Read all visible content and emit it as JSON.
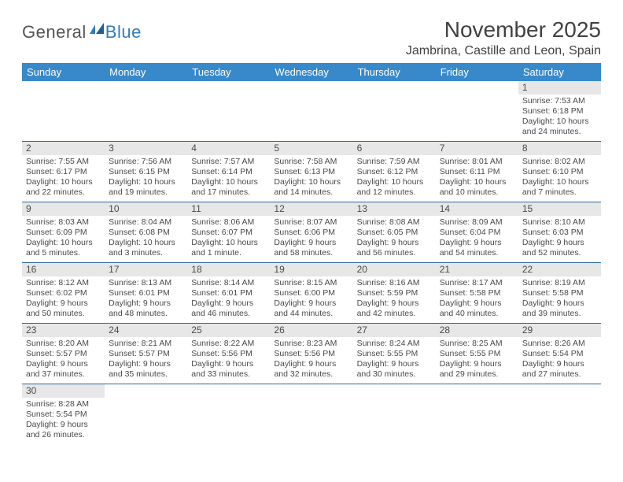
{
  "logo": {
    "part1": "General",
    "part2": "Blue"
  },
  "title": "November 2025",
  "location": "Jambrina, Castille and Leon, Spain",
  "colors": {
    "header_bg": "#3789ca",
    "header_text": "#ffffff",
    "daynum_bg": "#e7e7e7",
    "row_border": "#2c6aa3",
    "logo_gray": "#545454",
    "logo_blue": "#2f7bbf"
  },
  "weekdays": [
    "Sunday",
    "Monday",
    "Tuesday",
    "Wednesday",
    "Thursday",
    "Friday",
    "Saturday"
  ],
  "weeks": [
    [
      null,
      null,
      null,
      null,
      null,
      null,
      {
        "n": "1",
        "sunrise": "Sunrise: 7:53 AM",
        "sunset": "Sunset: 6:18 PM",
        "daylight": "Daylight: 10 hours and 24 minutes."
      }
    ],
    [
      {
        "n": "2",
        "sunrise": "Sunrise: 7:55 AM",
        "sunset": "Sunset: 6:17 PM",
        "daylight": "Daylight: 10 hours and 22 minutes."
      },
      {
        "n": "3",
        "sunrise": "Sunrise: 7:56 AM",
        "sunset": "Sunset: 6:15 PM",
        "daylight": "Daylight: 10 hours and 19 minutes."
      },
      {
        "n": "4",
        "sunrise": "Sunrise: 7:57 AM",
        "sunset": "Sunset: 6:14 PM",
        "daylight": "Daylight: 10 hours and 17 minutes."
      },
      {
        "n": "5",
        "sunrise": "Sunrise: 7:58 AM",
        "sunset": "Sunset: 6:13 PM",
        "daylight": "Daylight: 10 hours and 14 minutes."
      },
      {
        "n": "6",
        "sunrise": "Sunrise: 7:59 AM",
        "sunset": "Sunset: 6:12 PM",
        "daylight": "Daylight: 10 hours and 12 minutes."
      },
      {
        "n": "7",
        "sunrise": "Sunrise: 8:01 AM",
        "sunset": "Sunset: 6:11 PM",
        "daylight": "Daylight: 10 hours and 10 minutes."
      },
      {
        "n": "8",
        "sunrise": "Sunrise: 8:02 AM",
        "sunset": "Sunset: 6:10 PM",
        "daylight": "Daylight: 10 hours and 7 minutes."
      }
    ],
    [
      {
        "n": "9",
        "sunrise": "Sunrise: 8:03 AM",
        "sunset": "Sunset: 6:09 PM",
        "daylight": "Daylight: 10 hours and 5 minutes."
      },
      {
        "n": "10",
        "sunrise": "Sunrise: 8:04 AM",
        "sunset": "Sunset: 6:08 PM",
        "daylight": "Daylight: 10 hours and 3 minutes."
      },
      {
        "n": "11",
        "sunrise": "Sunrise: 8:06 AM",
        "sunset": "Sunset: 6:07 PM",
        "daylight": "Daylight: 10 hours and 1 minute."
      },
      {
        "n": "12",
        "sunrise": "Sunrise: 8:07 AM",
        "sunset": "Sunset: 6:06 PM",
        "daylight": "Daylight: 9 hours and 58 minutes."
      },
      {
        "n": "13",
        "sunrise": "Sunrise: 8:08 AM",
        "sunset": "Sunset: 6:05 PM",
        "daylight": "Daylight: 9 hours and 56 minutes."
      },
      {
        "n": "14",
        "sunrise": "Sunrise: 8:09 AM",
        "sunset": "Sunset: 6:04 PM",
        "daylight": "Daylight: 9 hours and 54 minutes."
      },
      {
        "n": "15",
        "sunrise": "Sunrise: 8:10 AM",
        "sunset": "Sunset: 6:03 PM",
        "daylight": "Daylight: 9 hours and 52 minutes."
      }
    ],
    [
      {
        "n": "16",
        "sunrise": "Sunrise: 8:12 AM",
        "sunset": "Sunset: 6:02 PM",
        "daylight": "Daylight: 9 hours and 50 minutes."
      },
      {
        "n": "17",
        "sunrise": "Sunrise: 8:13 AM",
        "sunset": "Sunset: 6:01 PM",
        "daylight": "Daylight: 9 hours and 48 minutes."
      },
      {
        "n": "18",
        "sunrise": "Sunrise: 8:14 AM",
        "sunset": "Sunset: 6:01 PM",
        "daylight": "Daylight: 9 hours and 46 minutes."
      },
      {
        "n": "19",
        "sunrise": "Sunrise: 8:15 AM",
        "sunset": "Sunset: 6:00 PM",
        "daylight": "Daylight: 9 hours and 44 minutes."
      },
      {
        "n": "20",
        "sunrise": "Sunrise: 8:16 AM",
        "sunset": "Sunset: 5:59 PM",
        "daylight": "Daylight: 9 hours and 42 minutes."
      },
      {
        "n": "21",
        "sunrise": "Sunrise: 8:17 AM",
        "sunset": "Sunset: 5:58 PM",
        "daylight": "Daylight: 9 hours and 40 minutes."
      },
      {
        "n": "22",
        "sunrise": "Sunrise: 8:19 AM",
        "sunset": "Sunset: 5:58 PM",
        "daylight": "Daylight: 9 hours and 39 minutes."
      }
    ],
    [
      {
        "n": "23",
        "sunrise": "Sunrise: 8:20 AM",
        "sunset": "Sunset: 5:57 PM",
        "daylight": "Daylight: 9 hours and 37 minutes."
      },
      {
        "n": "24",
        "sunrise": "Sunrise: 8:21 AM",
        "sunset": "Sunset: 5:57 PM",
        "daylight": "Daylight: 9 hours and 35 minutes."
      },
      {
        "n": "25",
        "sunrise": "Sunrise: 8:22 AM",
        "sunset": "Sunset: 5:56 PM",
        "daylight": "Daylight: 9 hours and 33 minutes."
      },
      {
        "n": "26",
        "sunrise": "Sunrise: 8:23 AM",
        "sunset": "Sunset: 5:56 PM",
        "daylight": "Daylight: 9 hours and 32 minutes."
      },
      {
        "n": "27",
        "sunrise": "Sunrise: 8:24 AM",
        "sunset": "Sunset: 5:55 PM",
        "daylight": "Daylight: 9 hours and 30 minutes."
      },
      {
        "n": "28",
        "sunrise": "Sunrise: 8:25 AM",
        "sunset": "Sunset: 5:55 PM",
        "daylight": "Daylight: 9 hours and 29 minutes."
      },
      {
        "n": "29",
        "sunrise": "Sunrise: 8:26 AM",
        "sunset": "Sunset: 5:54 PM",
        "daylight": "Daylight: 9 hours and 27 minutes."
      }
    ],
    [
      {
        "n": "30",
        "sunrise": "Sunrise: 8:28 AM",
        "sunset": "Sunset: 5:54 PM",
        "daylight": "Daylight: 9 hours and 26 minutes."
      },
      null,
      null,
      null,
      null,
      null,
      null
    ]
  ]
}
